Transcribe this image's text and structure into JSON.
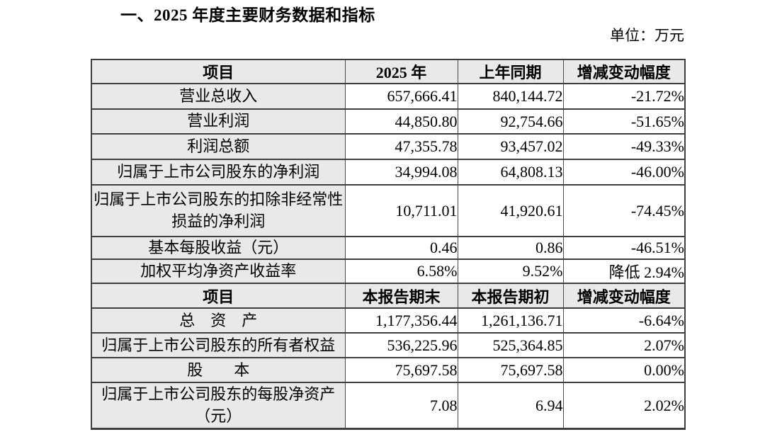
{
  "page": {
    "title": "一、2025 年度主要财务数据和指标",
    "unit_label": "单位：万元"
  },
  "table": {
    "sections": [
      {
        "header": [
          "项目",
          "2025 年",
          "上年同期",
          "增减变动幅度"
        ],
        "rows": [
          {
            "item": "营业总收入",
            "current": "657,666.41",
            "prior": "840,144.72",
            "change": "-21.72%"
          },
          {
            "item": "营业利润",
            "current": "44,850.80",
            "prior": "92,754.66",
            "change": "-51.65%"
          },
          {
            "item": "利润总额",
            "current": "47,355.78",
            "prior": "93,457.02",
            "change": "-49.33%"
          },
          {
            "item": "归属于上市公司股东的净利润",
            "current": "34,994.08",
            "prior": "64,808.13",
            "change": "-46.00%"
          },
          {
            "item": "归属于上市公司股东的扣除非经常性损益的净利润",
            "current": "10,711.01",
            "prior": "41,920.61",
            "change": "-74.45%"
          },
          {
            "item": "基本每股收益（元）",
            "current": "0.46",
            "prior": "0.86",
            "change": "-46.51%"
          },
          {
            "item": "加权平均净资产收益率",
            "current": "6.58%",
            "prior": "9.52%",
            "change": "降低 2.94%"
          }
        ]
      },
      {
        "header": [
          "项目",
          "本报告期末",
          "本报告期初",
          "增减变动幅度"
        ],
        "rows": [
          {
            "item": "总　资　产",
            "current": "1,177,356.44",
            "prior": "1,261,136.71",
            "change": "-6.64%"
          },
          {
            "item": "归属于上市公司股东的所有者权益",
            "current": "536,225.96",
            "prior": "525,364.85",
            "change": "2.07%"
          },
          {
            "item": "股　　本",
            "current": "75,697.58",
            "prior": "75,697.58",
            "change": "0.00%"
          },
          {
            "item": "归属于上市公司股东的每股净资产（元）",
            "current": "7.08",
            "prior": "6.94",
            "change": "2.02%"
          }
        ]
      }
    ]
  }
}
